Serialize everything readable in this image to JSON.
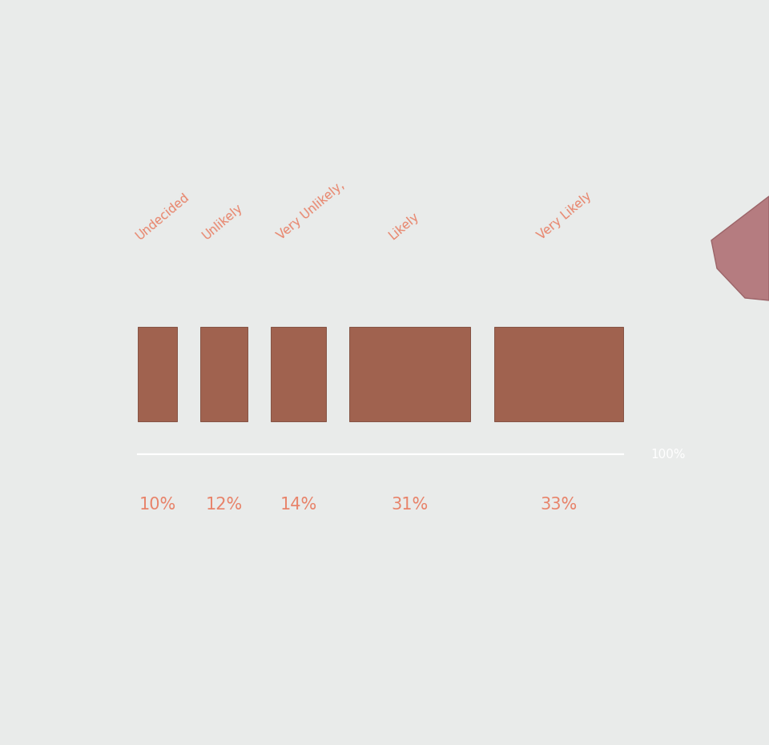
{
  "chart_data": {
    "type": "bar",
    "categories": [
      "Undecided",
      "Unlikely",
      "Very Unlikely,",
      "Likely",
      "Very Likely"
    ],
    "values": [
      10,
      12,
      14,
      31,
      33
    ],
    "value_labels": [
      "10%",
      "12%",
      "14%",
      "31%",
      "33%"
    ],
    "data_labels": true,
    "total": {
      "value": 100,
      "label": "100%"
    },
    "color": "#a0624f",
    "tick_labels": false
  }
}
